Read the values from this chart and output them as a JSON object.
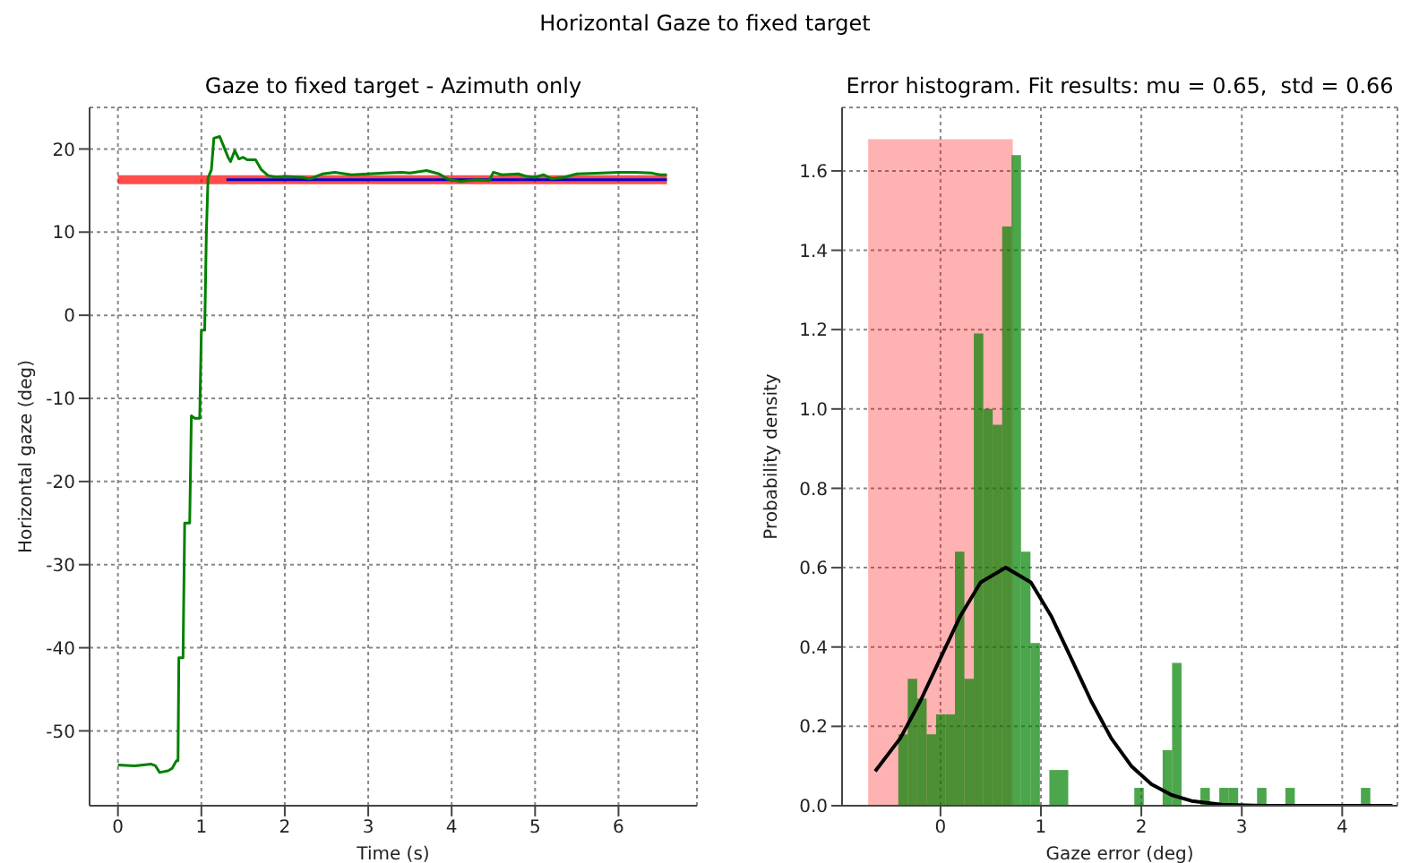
{
  "chart_data": [
    {
      "type": "line",
      "title": "Gaze to fixed target - Azimuth only",
      "xlabel": "Time (s)",
      "ylabel": "Horizontal gaze (deg)",
      "annotations": [
        "Horizontal Gaze to fixed target"
      ],
      "xlim": [
        -0.34,
        6.94
      ],
      "ylim": [
        -59,
        25
      ],
      "xticks": [
        0,
        1,
        2,
        3,
        4,
        5,
        6
      ],
      "yticks": [
        -50,
        -40,
        -30,
        -20,
        -10,
        0,
        10,
        20
      ],
      "grid": true,
      "series": [
        {
          "color": "#ff0000",
          "x": [
            0,
            6.58
          ],
          "values": [
            16.3,
            16.3
          ]
        },
        {
          "color": "#0000cc",
          "x": [
            1.3,
            6.58
          ],
          "values": [
            16.3,
            16.3
          ]
        },
        {
          "color": "#008000",
          "x": [
            0,
            0.2,
            0.4,
            0.45,
            0.5,
            0.6,
            0.65,
            0.7,
            0.72,
            0.73,
            0.78,
            0.8,
            0.86,
            0.88,
            0.92,
            0.98,
            1.0,
            1.04,
            1.06,
            1.08,
            1.12,
            1.15,
            1.22,
            1.28,
            1.32,
            1.35,
            1.4,
            1.45,
            1.5,
            1.55,
            1.65,
            1.72,
            1.8,
            1.9,
            2.0,
            2.2,
            2.3,
            2.45,
            2.6,
            2.8,
            3.0,
            3.2,
            3.4,
            3.5,
            3.7,
            3.85,
            3.95,
            4.1,
            4.3,
            4.45,
            4.5,
            4.6,
            4.8,
            4.9,
            5.0,
            5.1,
            5.2,
            5.35,
            5.5,
            5.8,
            6.0,
            6.2,
            6.4,
            6.5,
            6.58
          ],
          "values": [
            -54.1,
            -54.2,
            -54,
            -54.2,
            -55,
            -54.8,
            -54.5,
            -53.6,
            -53.6,
            -41.2,
            -41.2,
            -25,
            -25,
            -12.1,
            -12.4,
            -12.4,
            -1.8,
            -1.8,
            10,
            16.5,
            17.5,
            21.3,
            21.5,
            20,
            19,
            18.5,
            19.8,
            18.8,
            19,
            18.7,
            18.7,
            17.5,
            16.8,
            16.6,
            16.7,
            16.6,
            16.4,
            17,
            17.2,
            16.9,
            17,
            17.1,
            17.2,
            17.1,
            17.4,
            17,
            16.4,
            16.1,
            16.3,
            16.2,
            17.2,
            16.9,
            17,
            16.7,
            16.6,
            16.9,
            16.4,
            16.6,
            17,
            17.1,
            17.2,
            17.2,
            17.1,
            16.9,
            16.9
          ]
        }
      ]
    },
    {
      "type": "histogram",
      "title": "Error histogram. Fit results: mu = 0.65,  std = 0.66",
      "xlabel": "Gaze error (deg)",
      "ylabel": "Probability density",
      "xlim": [
        -0.98,
        4.55
      ],
      "ylim": [
        0,
        1.76
      ],
      "xticks": [
        0,
        1,
        2,
        3,
        4
      ],
      "yticks": [
        {
          "value": 0,
          "label": "0.0"
        },
        {
          "value": 0.2,
          "label": "0.2"
        },
        {
          "value": 0.4,
          "label": "0.4"
        },
        {
          "value": 0.6,
          "label": "0.6"
        },
        {
          "value": 0.8,
          "label": "0.8"
        },
        {
          "value": 1,
          "label": "1.0"
        },
        {
          "value": 1.2,
          "label": "1.2"
        },
        {
          "value": 1.4,
          "label": "1.4"
        },
        {
          "value": 1.6,
          "label": "1.6"
        }
      ],
      "grid": true,
      "series": [
        {
          "type": "histogram",
          "color": "#ff0000",
          "bins": [
            -0.72,
            0.72
          ],
          "values": [
            1.68
          ]
        },
        {
          "type": "histogram",
          "color": "#008000",
          "bins": [
            -0.42,
            -0.326,
            -0.232,
            -0.138,
            -0.044,
            0.05,
            0.144,
            0.238,
            0.332,
            0.426,
            0.52,
            0.614,
            0.708,
            0.802,
            0.896,
            0.99,
            1.084,
            1.178,
            1.272,
            1.93,
            2.024,
            2.212,
            2.306,
            2.4,
            2.588,
            2.682,
            2.776,
            2.87,
            2.964,
            3.152,
            3.246,
            3.434,
            3.528,
            4.186,
            4.28
          ],
          "values": [
            0.18,
            0.32,
            0.27,
            0.18,
            0.23,
            0.23,
            0.64,
            0.32,
            1.19,
            1.0,
            0.96,
            1.46,
            1.64,
            0.64,
            0.41,
            0,
            0.09,
            0.09,
            0,
            0.045,
            0,
            0.14,
            0.36,
            0,
            0.045,
            0,
            0.045,
            0.045,
            0,
            0.045,
            0,
            0.045,
            0,
            0.045
          ]
        },
        {
          "type": "line",
          "color": "#000000",
          "x": [
            -0.65,
            -0.4,
            -0.2,
            0,
            0.2,
            0.4,
            0.65,
            0.9,
            1.1,
            1.3,
            1.5,
            1.7,
            1.9,
            2.1,
            2.3,
            2.5,
            2.8,
            3.2,
            4.5
          ],
          "values": [
            0.087,
            0.17,
            0.264,
            0.372,
            0.479,
            0.563,
            0.6,
            0.563,
            0.479,
            0.372,
            0.264,
            0.17,
            0.1,
            0.054,
            0.027,
            0.012,
            0.003,
            0,
            0
          ]
        }
      ]
    }
  ]
}
